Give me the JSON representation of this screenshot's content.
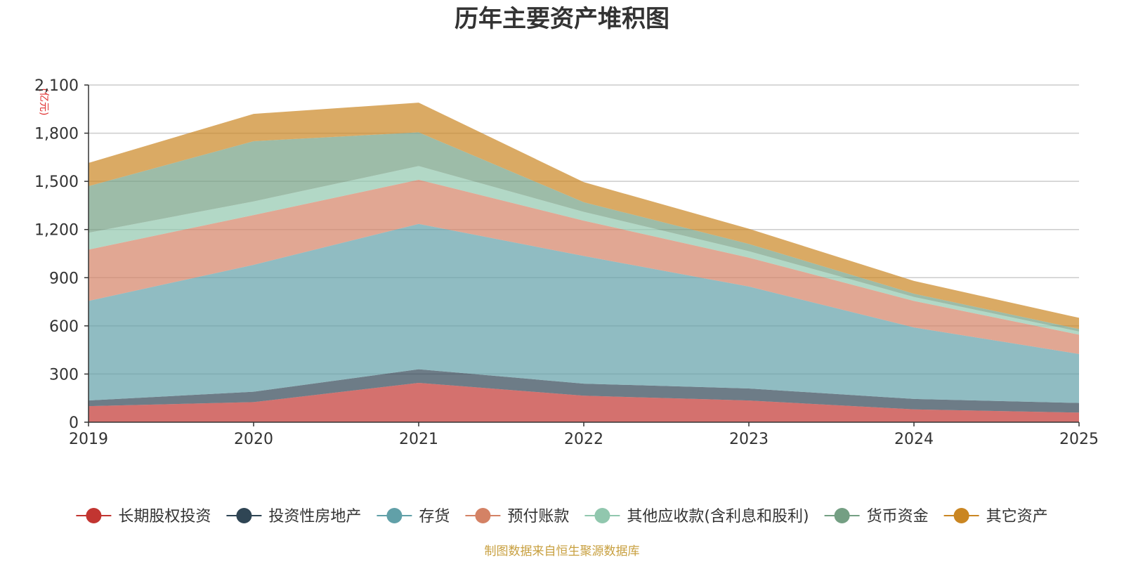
{
  "chart_data": {
    "type": "area",
    "stacked": true,
    "title": "历年主要资产堆积图",
    "unit": "(亿元)",
    "x": [
      "2019",
      "2020",
      "2021",
      "2022",
      "2023",
      "2024",
      "2025"
    ],
    "ylim": [
      0,
      2100
    ],
    "yticks": [
      0,
      300,
      600,
      900,
      1200,
      1500,
      1800,
      2100
    ],
    "ytick_labels": [
      "0",
      "300",
      "600",
      "900",
      "1,200",
      "1,500",
      "1,800",
      "2,100"
    ],
    "grid": true,
    "legend_position": "bottom",
    "series": [
      {
        "name": "长期股权投资",
        "color": "#c23531",
        "values": [
          100,
          125,
          245,
          165,
          135,
          80,
          60
        ]
      },
      {
        "name": "投资性房地产",
        "color": "#2f4554",
        "values": [
          35,
          65,
          85,
          75,
          75,
          65,
          60
        ]
      },
      {
        "name": "存货",
        "color": "#61a0a8",
        "values": [
          620,
          790,
          905,
          795,
          635,
          445,
          305
        ]
      },
      {
        "name": "预付账款",
        "color": "#d48265",
        "values": [
          320,
          310,
          275,
          220,
          180,
          165,
          120
        ]
      },
      {
        "name": "其他应收款(含利息和股利)",
        "color": "#91c7ae",
        "values": [
          105,
          85,
          85,
          55,
          40,
          25,
          20
        ]
      },
      {
        "name": "货币资金",
        "color": "#749f83",
        "values": [
          290,
          375,
          210,
          60,
          45,
          20,
          15
        ]
      },
      {
        "name": "其它资产",
        "color": "#ca8622",
        "values": [
          145,
          170,
          185,
          125,
          95,
          80,
          70
        ]
      }
    ],
    "source_note": "制图数据来自恒生聚源数据库"
  }
}
